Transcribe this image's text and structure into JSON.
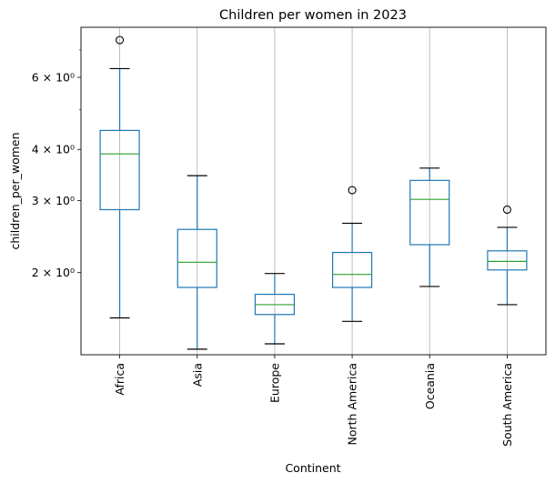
{
  "chart_data": {
    "type": "box",
    "title": "Children per women in 2023",
    "xlabel": "Continent",
    "ylabel": "children_per_women",
    "yscale": "log",
    "ylim": [
      1.26,
      7.95
    ],
    "grid": "vertical",
    "y_ticks": [
      {
        "value": 2,
        "label": "2 × 10⁰"
      },
      {
        "value": 3,
        "label": "3 × 10⁰"
      },
      {
        "value": 4,
        "label": "4 × 10⁰"
      },
      {
        "value": 6,
        "label": "6 × 10⁰"
      }
    ],
    "y_minor_ticks": [
      5,
      7
    ],
    "categories": [
      "Africa",
      "Asia",
      "Europe",
      "North America",
      "Oceania",
      "South America"
    ],
    "boxes": [
      {
        "category": "Africa",
        "whisker_low": 1.55,
        "q1": 2.85,
        "median": 3.9,
        "q3": 4.45,
        "whisker_high": 6.3,
        "outliers": [
          7.4
        ]
      },
      {
        "category": "Asia",
        "whisker_low": 1.3,
        "q1": 1.84,
        "median": 2.12,
        "q3": 2.55,
        "whisker_high": 3.45,
        "outliers": []
      },
      {
        "category": "Europe",
        "whisker_low": 1.34,
        "q1": 1.58,
        "median": 1.67,
        "q3": 1.77,
        "whisker_high": 1.99,
        "outliers": []
      },
      {
        "category": "North America",
        "whisker_low": 1.52,
        "q1": 1.84,
        "median": 1.98,
        "q3": 2.24,
        "whisker_high": 2.64,
        "outliers": [
          3.18
        ]
      },
      {
        "category": "Oceania",
        "whisker_low": 1.85,
        "q1": 2.34,
        "median": 3.02,
        "q3": 3.36,
        "whisker_high": 3.6,
        "outliers": []
      },
      {
        "category": "South America",
        "whisker_low": 1.67,
        "q1": 2.03,
        "median": 2.13,
        "q3": 2.26,
        "whisker_high": 2.58,
        "outliers": [
          2.85
        ]
      }
    ],
    "colors": {
      "box": "#1f77b4",
      "median": "#2ca02c",
      "whisker": "#1f77b4",
      "cap": "#000000",
      "outlier": "#000000",
      "grid": "#b0b0b0"
    }
  }
}
